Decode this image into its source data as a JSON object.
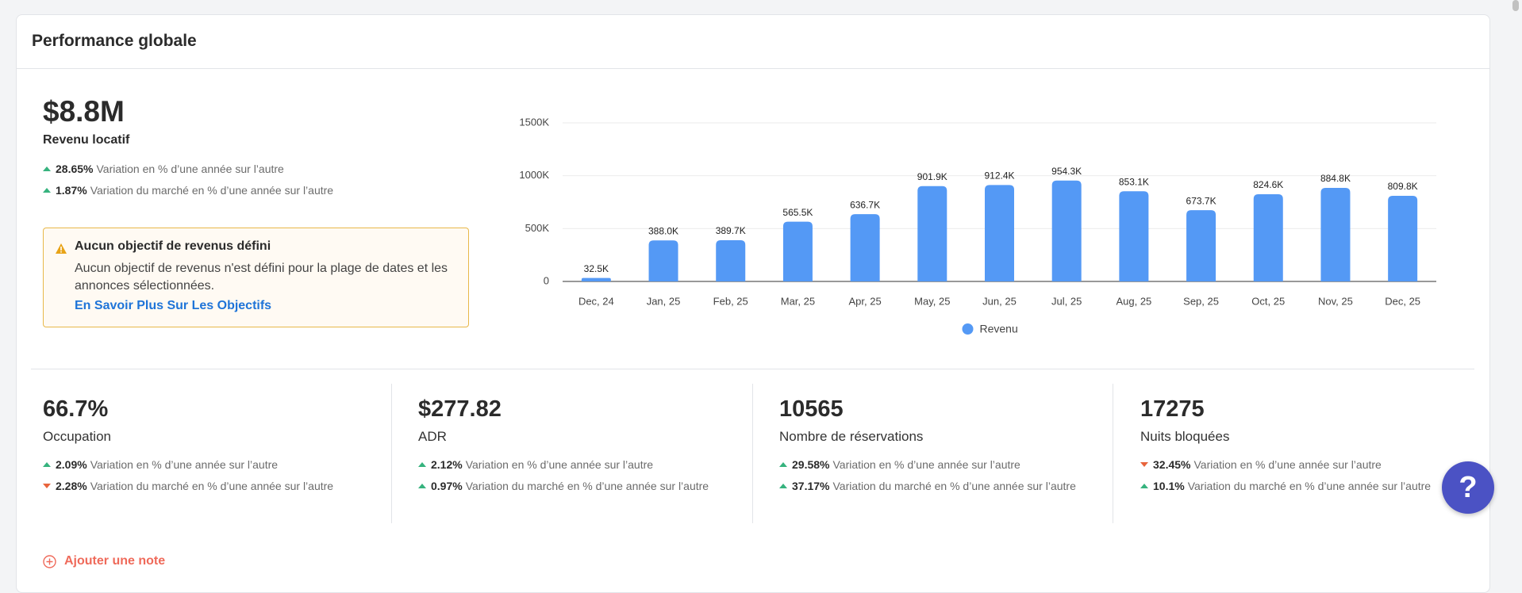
{
  "header": {
    "title": "Performance globale"
  },
  "revenue": {
    "value": "$8.8M",
    "label": "Revenu locatif",
    "changes": [
      {
        "direction": "up",
        "value": "28.65%",
        "text": "Variation en % d’une année sur l’autre"
      },
      {
        "direction": "up",
        "value": "1.87%",
        "text": "Variation du marché en % d’une année sur l’autre"
      }
    ]
  },
  "alert": {
    "title": "Aucun objectif de revenus défini",
    "text": "Aucun objectif de revenus n'est défini pour la plage de dates et les annonces sélectionnées.",
    "link": "En Savoir Plus Sur Les Objectifs"
  },
  "chart_data": {
    "type": "bar",
    "categories": [
      "Dec, 24",
      "Jan, 25",
      "Feb, 25",
      "Mar, 25",
      "Apr, 25",
      "May, 25",
      "Jun, 25",
      "Jul, 25",
      "Aug, 25",
      "Sep, 25",
      "Oct, 25",
      "Nov, 25",
      "Dec, 25"
    ],
    "series": [
      {
        "name": "Revenu",
        "color": "#5499f5",
        "values": [
          32500,
          388000,
          389700,
          565500,
          636700,
          901900,
          912400,
          954300,
          853100,
          673700,
          824600,
          884800,
          809800
        ],
        "value_labels": [
          "32.5K",
          "388.0K",
          "389.7K",
          "565.5K",
          "636.7K",
          "901.9K",
          "912.4K",
          "954.3K",
          "853.1K",
          "673.7K",
          "824.6K",
          "884.8K",
          "809.8K"
        ]
      }
    ],
    "ylim": [
      0,
      1500000
    ],
    "yticks": [
      0,
      {
        "value": 500000,
        "label": "500K"
      },
      {
        "value": 1000000,
        "label": "1000K"
      },
      {
        "value": 1500000,
        "label": "1500K"
      }
    ],
    "grid": true,
    "legend": "bottom"
  },
  "metrics": [
    {
      "value": "66.7%",
      "label": "Occupation",
      "changes": [
        {
          "direction": "up",
          "value": "2.09%",
          "text": "Variation en % d’une année sur l’autre"
        },
        {
          "direction": "down",
          "value": "2.28%",
          "text": "Variation du marché en % d’une année sur l’autre"
        }
      ]
    },
    {
      "value": "$277.82",
      "label": "ADR",
      "changes": [
        {
          "direction": "up",
          "value": "2.12%",
          "text": "Variation en % d’une année sur l’autre"
        },
        {
          "direction": "up",
          "value": "0.97%",
          "text": "Variation du marché en % d’une année sur l’autre"
        }
      ]
    },
    {
      "value": "10565",
      "label": "Nombre de réservations",
      "changes": [
        {
          "direction": "up",
          "value": "29.58%",
          "text": "Variation en % d’une année sur l’autre"
        },
        {
          "direction": "up",
          "value": "37.17%",
          "text": "Variation du marché en % d’une année sur l’autre"
        }
      ]
    },
    {
      "value": "17275",
      "label": "Nuits bloquées",
      "changes": [
        {
          "direction": "down",
          "value": "32.45%",
          "text": "Variation en % d’une année sur l’autre"
        },
        {
          "direction": "up",
          "value": "10.1%",
          "text": "Variation du marché en % d’une année sur l’autre"
        }
      ]
    }
  ],
  "add_note": "Ajouter une note"
}
